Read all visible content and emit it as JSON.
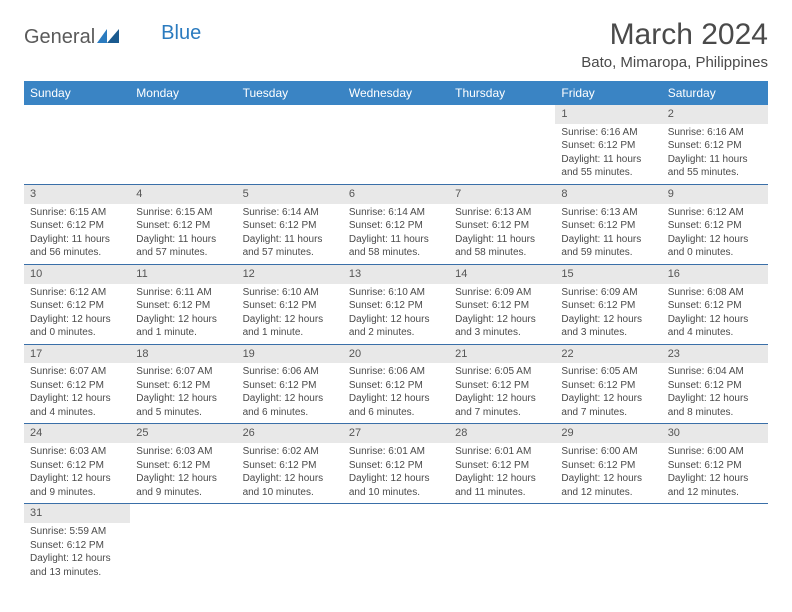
{
  "logo": {
    "text1": "General",
    "text2": "Blue"
  },
  "title": "March 2024",
  "location": "Bato, Mimaropa, Philippines",
  "weekdays": [
    "Sunday",
    "Monday",
    "Tuesday",
    "Wednesday",
    "Thursday",
    "Friday",
    "Saturday"
  ],
  "colors": {
    "header_bg": "#3a84c4",
    "row_border": "#3a6fa8",
    "daynum_bg": "#e8e8e8"
  },
  "cells": [
    [
      null,
      null,
      null,
      null,
      null,
      {
        "n": "1",
        "sr": "Sunrise: 6:16 AM",
        "ss": "Sunset: 6:12 PM",
        "dl": "Daylight: 11 hours and 55 minutes."
      },
      {
        "n": "2",
        "sr": "Sunrise: 6:16 AM",
        "ss": "Sunset: 6:12 PM",
        "dl": "Daylight: 11 hours and 55 minutes."
      }
    ],
    [
      {
        "n": "3",
        "sr": "Sunrise: 6:15 AM",
        "ss": "Sunset: 6:12 PM",
        "dl": "Daylight: 11 hours and 56 minutes."
      },
      {
        "n": "4",
        "sr": "Sunrise: 6:15 AM",
        "ss": "Sunset: 6:12 PM",
        "dl": "Daylight: 11 hours and 57 minutes."
      },
      {
        "n": "5",
        "sr": "Sunrise: 6:14 AM",
        "ss": "Sunset: 6:12 PM",
        "dl": "Daylight: 11 hours and 57 minutes."
      },
      {
        "n": "6",
        "sr": "Sunrise: 6:14 AM",
        "ss": "Sunset: 6:12 PM",
        "dl": "Daylight: 11 hours and 58 minutes."
      },
      {
        "n": "7",
        "sr": "Sunrise: 6:13 AM",
        "ss": "Sunset: 6:12 PM",
        "dl": "Daylight: 11 hours and 58 minutes."
      },
      {
        "n": "8",
        "sr": "Sunrise: 6:13 AM",
        "ss": "Sunset: 6:12 PM",
        "dl": "Daylight: 11 hours and 59 minutes."
      },
      {
        "n": "9",
        "sr": "Sunrise: 6:12 AM",
        "ss": "Sunset: 6:12 PM",
        "dl": "Daylight: 12 hours and 0 minutes."
      }
    ],
    [
      {
        "n": "10",
        "sr": "Sunrise: 6:12 AM",
        "ss": "Sunset: 6:12 PM",
        "dl": "Daylight: 12 hours and 0 minutes."
      },
      {
        "n": "11",
        "sr": "Sunrise: 6:11 AM",
        "ss": "Sunset: 6:12 PM",
        "dl": "Daylight: 12 hours and 1 minute."
      },
      {
        "n": "12",
        "sr": "Sunrise: 6:10 AM",
        "ss": "Sunset: 6:12 PM",
        "dl": "Daylight: 12 hours and 1 minute."
      },
      {
        "n": "13",
        "sr": "Sunrise: 6:10 AM",
        "ss": "Sunset: 6:12 PM",
        "dl": "Daylight: 12 hours and 2 minutes."
      },
      {
        "n": "14",
        "sr": "Sunrise: 6:09 AM",
        "ss": "Sunset: 6:12 PM",
        "dl": "Daylight: 12 hours and 3 minutes."
      },
      {
        "n": "15",
        "sr": "Sunrise: 6:09 AM",
        "ss": "Sunset: 6:12 PM",
        "dl": "Daylight: 12 hours and 3 minutes."
      },
      {
        "n": "16",
        "sr": "Sunrise: 6:08 AM",
        "ss": "Sunset: 6:12 PM",
        "dl": "Daylight: 12 hours and 4 minutes."
      }
    ],
    [
      {
        "n": "17",
        "sr": "Sunrise: 6:07 AM",
        "ss": "Sunset: 6:12 PM",
        "dl": "Daylight: 12 hours and 4 minutes."
      },
      {
        "n": "18",
        "sr": "Sunrise: 6:07 AM",
        "ss": "Sunset: 6:12 PM",
        "dl": "Daylight: 12 hours and 5 minutes."
      },
      {
        "n": "19",
        "sr": "Sunrise: 6:06 AM",
        "ss": "Sunset: 6:12 PM",
        "dl": "Daylight: 12 hours and 6 minutes."
      },
      {
        "n": "20",
        "sr": "Sunrise: 6:06 AM",
        "ss": "Sunset: 6:12 PM",
        "dl": "Daylight: 12 hours and 6 minutes."
      },
      {
        "n": "21",
        "sr": "Sunrise: 6:05 AM",
        "ss": "Sunset: 6:12 PM",
        "dl": "Daylight: 12 hours and 7 minutes."
      },
      {
        "n": "22",
        "sr": "Sunrise: 6:05 AM",
        "ss": "Sunset: 6:12 PM",
        "dl": "Daylight: 12 hours and 7 minutes."
      },
      {
        "n": "23",
        "sr": "Sunrise: 6:04 AM",
        "ss": "Sunset: 6:12 PM",
        "dl": "Daylight: 12 hours and 8 minutes."
      }
    ],
    [
      {
        "n": "24",
        "sr": "Sunrise: 6:03 AM",
        "ss": "Sunset: 6:12 PM",
        "dl": "Daylight: 12 hours and 9 minutes."
      },
      {
        "n": "25",
        "sr": "Sunrise: 6:03 AM",
        "ss": "Sunset: 6:12 PM",
        "dl": "Daylight: 12 hours and 9 minutes."
      },
      {
        "n": "26",
        "sr": "Sunrise: 6:02 AM",
        "ss": "Sunset: 6:12 PM",
        "dl": "Daylight: 12 hours and 10 minutes."
      },
      {
        "n": "27",
        "sr": "Sunrise: 6:01 AM",
        "ss": "Sunset: 6:12 PM",
        "dl": "Daylight: 12 hours and 10 minutes."
      },
      {
        "n": "28",
        "sr": "Sunrise: 6:01 AM",
        "ss": "Sunset: 6:12 PM",
        "dl": "Daylight: 12 hours and 11 minutes."
      },
      {
        "n": "29",
        "sr": "Sunrise: 6:00 AM",
        "ss": "Sunset: 6:12 PM",
        "dl": "Daylight: 12 hours and 12 minutes."
      },
      {
        "n": "30",
        "sr": "Sunrise: 6:00 AM",
        "ss": "Sunset: 6:12 PM",
        "dl": "Daylight: 12 hours and 12 minutes."
      }
    ],
    [
      {
        "n": "31",
        "sr": "Sunrise: 5:59 AM",
        "ss": "Sunset: 6:12 PM",
        "dl": "Daylight: 12 hours and 13 minutes."
      },
      null,
      null,
      null,
      null,
      null,
      null
    ]
  ]
}
